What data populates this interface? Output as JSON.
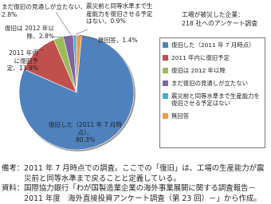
{
  "chart_data": {
    "type": "pie",
    "legend_title": [
      "工場が被災した企業：",
      "218 社へのアンケート調査"
    ],
    "categories": [
      "復旧した（2011 年 7 月時点）",
      "2011 年内に復旧予定",
      "復旧は 2012 年以降",
      "まだ復旧の見通しが立たない",
      "震災前と同等水準まで生産能力を復旧させる予定はない",
      "無回答"
    ],
    "slice_labels": [
      "復旧した（2011 年 7 月時点）、",
      "2011 年内に復旧予定、",
      "復旧は 2012 年以降、",
      "まだ復旧の見通しが立たない、",
      "震災前と同等水準まで生産能力を復旧させる予定はない、",
      "無回答、"
    ],
    "values": [
      80.3,
      11.9,
      2.8,
      2.8,
      0.9,
      1.4
    ],
    "value_labels": [
      "80.3%",
      "11.9%",
      "2.8%",
      "2.8%",
      "0.9%",
      "1.4%"
    ],
    "colors": [
      "#4f81bd",
      "#c0504d",
      "#9bbb59",
      "#8064a2",
      "#4bacc6",
      "#f79646"
    ],
    "legend": "right"
  },
  "notes": {
    "remark_head": "備考：",
    "remark": "2011 年 7 月時点での調査。ここでの「復旧」は、工場の生産能力が震災前と同等水準まで戻ることと定義している。",
    "source_head": "資料：",
    "source": "国際協力銀行「わが国製造業企業の海外事業展開に関する調査報告－2011 年度　海外直接投資アンケート調査（第 23 回）－」から作成。"
  }
}
